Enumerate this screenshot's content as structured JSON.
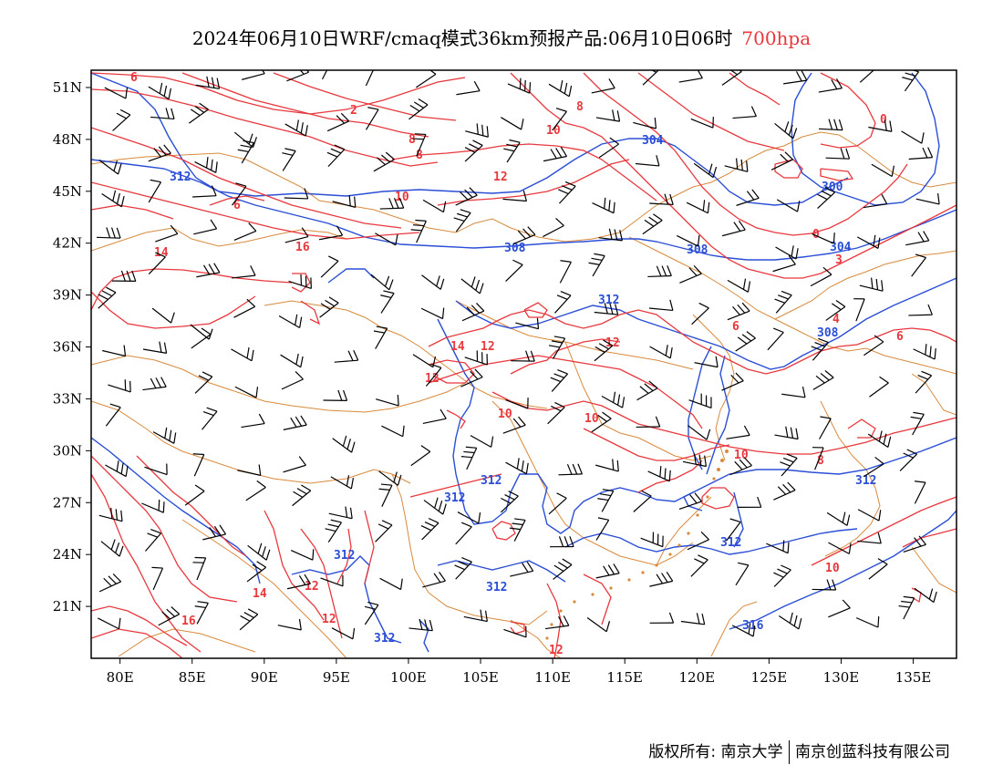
{
  "title": {
    "main": "2024年06月10日WRF/cmaq模式36km预报产品:06月10日06时",
    "level": "700hpa"
  },
  "axes": {
    "x_ticks": [
      "80E",
      "85E",
      "90E",
      "95E",
      "100E",
      "105E",
      "110E",
      "115E",
      "120E",
      "125E",
      "130E",
      "135E"
    ],
    "y_ticks": [
      "51N",
      "48N",
      "45N",
      "42N",
      "39N",
      "36N",
      "33N",
      "30N",
      "27N",
      "24N",
      "21N"
    ],
    "lon_range": [
      78,
      138
    ],
    "lat_range": [
      18,
      52
    ]
  },
  "colors": {
    "temperature": "#e8383d",
    "geopotential": "#2a4ed6",
    "borders": "#d98a3c",
    "wind": "#000000"
  },
  "contour_labels": {
    "temperature": [
      "6",
      "2",
      "8",
      "8",
      "10",
      "8",
      "10",
      "12",
      "0",
      "6",
      "0",
      "3",
      "14",
      "16",
      "6",
      "4",
      "6",
      "14",
      "12",
      "10",
      "10",
      "10",
      "8",
      "10",
      "0",
      "14",
      "16",
      "12",
      "12",
      "12",
      "12"
    ],
    "geopotential": [
      "312",
      "304",
      "300",
      "308",
      "308",
      "304",
      "312",
      "308",
      "312",
      "312",
      "312",
      "312",
      "312",
      "312",
      "312",
      "316"
    ]
  },
  "footer": {
    "copyright": "版权所有: 南京大学",
    "company": "南京创蓝科技有限公司"
  }
}
